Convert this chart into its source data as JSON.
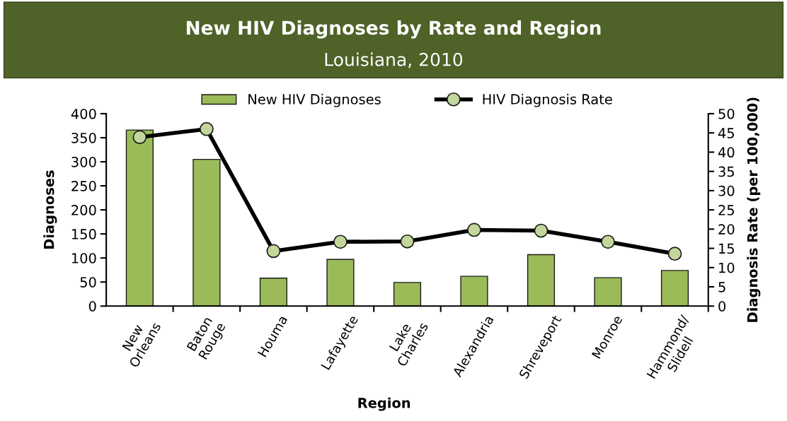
{
  "chart_data": {
    "type": "line",
    "title": "New HIV Diagnoses by Rate and Region",
    "subtitle": "Louisiana, 2010",
    "xlabel": "Region",
    "ylabel": "Diagnoses",
    "y2label": "Diagnosis Rate (per 100,000)",
    "categories": [
      "New\nOrleans",
      "Baton\nRouge",
      "Houma",
      "Lafayette",
      "Lake\nCharles",
      "Alexandria",
      "Shreveport",
      "Monroe",
      "Hammond/\nSlidell"
    ],
    "series": [
      {
        "name": "New HIV Diagnoses",
        "type": "bar",
        "color": "#9bbb59",
        "values": [
          366,
          305,
          58,
          97,
          49,
          62,
          107,
          59,
          74
        ]
      },
      {
        "name": "HIV Diagnosis Rate",
        "axis": "y2",
        "color": "#000000",
        "marker": "circle",
        "values": [
          43.9,
          46.0,
          14.3,
          16.7,
          16.8,
          19.8,
          19.6,
          16.7,
          13.6
        ]
      }
    ],
    "ylim": [
      0,
      400
    ],
    "yticks": [
      0,
      50,
      100,
      150,
      200,
      250,
      300,
      350,
      400
    ],
    "y2lim": [
      0,
      50
    ],
    "y2ticks": [
      0,
      5,
      10,
      15,
      20,
      25,
      30,
      35,
      40,
      45,
      50
    ],
    "legend": "top",
    "grid": false
  }
}
